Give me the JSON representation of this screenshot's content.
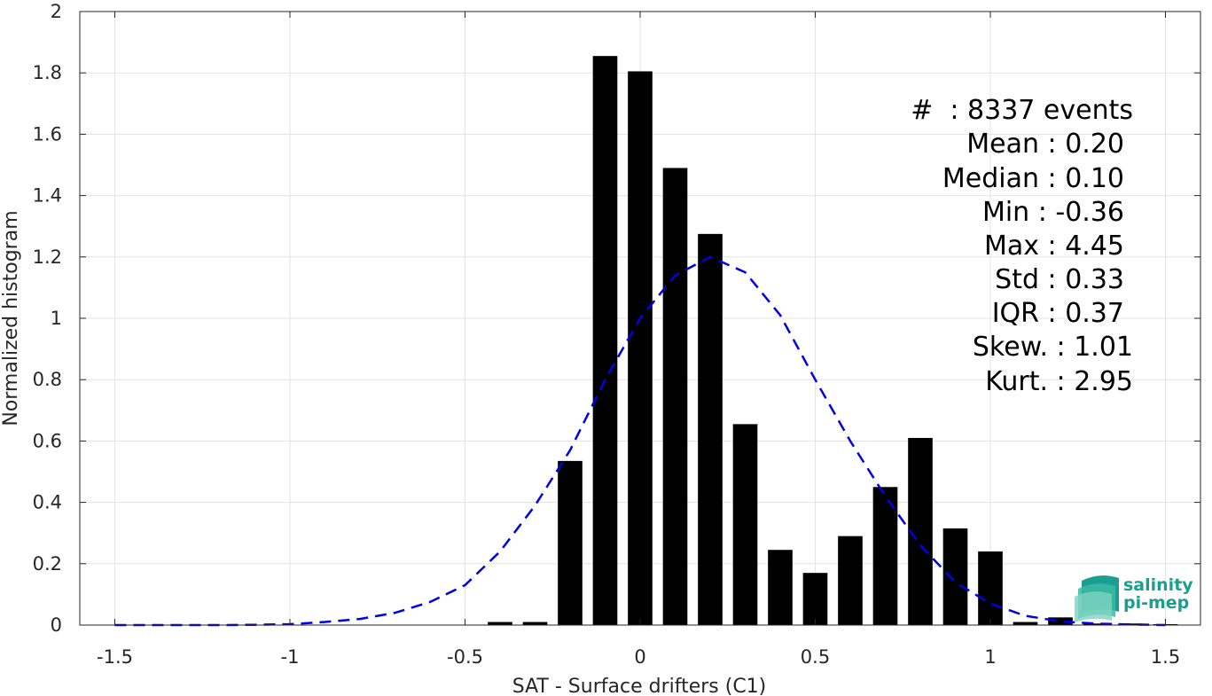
{
  "chart_data": {
    "type": "bar",
    "xlabel": "SAT - Surface drifters (C1)",
    "ylabel": "Normalized histogram",
    "xlim": [
      -1.6,
      1.6
    ],
    "ylim": [
      0,
      2
    ],
    "xticks": [
      -1.5,
      -1,
      -0.5,
      0,
      0.5,
      1,
      1.5
    ],
    "xtick_labels": [
      "-1.5",
      "-1",
      "-0.5",
      "0",
      "0.5",
      "1",
      "1.5"
    ],
    "yticks": [
      0,
      0.2,
      0.4,
      0.6,
      0.8,
      1,
      1.2,
      1.4,
      1.6,
      1.8,
      2
    ],
    "ytick_labels": [
      "0",
      "0.2",
      "0.4",
      "0.6",
      "0.8",
      "1",
      "1.2",
      "1.4",
      "1.6",
      "1.8",
      "2"
    ],
    "grid": true,
    "bar_width": 0.07,
    "series": [
      {
        "type": "bar",
        "color": "#000000",
        "x": [
          -0.4,
          -0.3,
          -0.2,
          -0.1,
          0.0,
          0.1,
          0.2,
          0.3,
          0.4,
          0.5,
          0.6,
          0.7,
          0.8,
          0.9,
          1.0,
          1.1,
          1.2,
          1.3,
          1.4,
          1.5
        ],
        "values": [
          0.01,
          0.01,
          0.535,
          1.855,
          1.805,
          1.49,
          1.275,
          0.655,
          0.245,
          0.17,
          0.29,
          0.45,
          0.61,
          0.315,
          0.24,
          0.01,
          0.025,
          0.005,
          0.005,
          0.003
        ]
      },
      {
        "type": "line",
        "style": "dashed",
        "color": "#0000e6",
        "x": [
          -1.5,
          -1.4,
          -1.3,
          -1.2,
          -1.1,
          -1.0,
          -0.9,
          -0.8,
          -0.7,
          -0.6,
          -0.5,
          -0.4,
          -0.3,
          -0.2,
          -0.1,
          0.0,
          0.1,
          0.2,
          0.3,
          0.4,
          0.5,
          0.6,
          0.7,
          0.8,
          0.9,
          1.0,
          1.1,
          1.2,
          1.3,
          1.4,
          1.5
        ],
        "values": [
          0.0,
          0.0,
          0.0,
          0.0,
          0.001,
          0.003,
          0.01,
          0.02,
          0.04,
          0.075,
          0.13,
          0.24,
          0.39,
          0.57,
          0.8,
          1.0,
          1.14,
          1.2,
          1.15,
          1.01,
          0.8,
          0.6,
          0.42,
          0.26,
          0.14,
          0.07,
          0.03,
          0.012,
          0.005,
          0.002,
          0.0
        ]
      }
    ],
    "stats_box": [
      "#  : 8337 events",
      "Mean : 0.20",
      "Median : 0.10",
      "Min : -0.36",
      "Max : 4.45",
      "Std : 0.33",
      "IQR : 0.37",
      "Skew. : 1.01",
      "Kurt. : 2.95"
    ]
  },
  "logo": {
    "line1": "salinity",
    "line2": "pi-mep",
    "color": "#1a9e8f"
  }
}
